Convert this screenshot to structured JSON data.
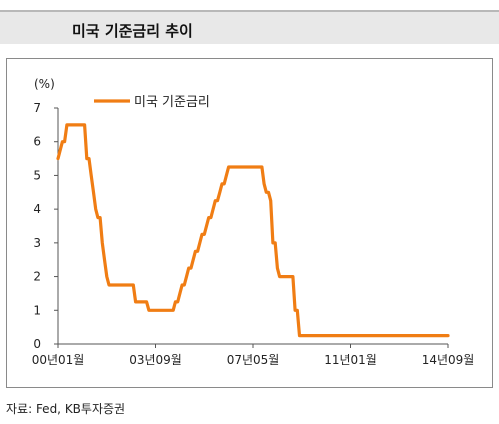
{
  "header": {
    "title": "미국 기준금리 추이"
  },
  "source": "자료: Fed, KB투자증권",
  "chart_data": {
    "type": "line",
    "title": "미국 기준금리 추이",
    "ylabel": "(%)",
    "xlabel": "",
    "ylim": [
      0,
      7
    ],
    "yticks": [
      0,
      1,
      2,
      3,
      4,
      5,
      6,
      7
    ],
    "xticks": [
      "00년01월",
      "03년09월",
      "07년05월",
      "11년01월",
      "14년09월"
    ],
    "xtick_positions": [
      0,
      44,
      88,
      132,
      176
    ],
    "legend_position": "top-left",
    "grid": false,
    "series_color": "#f07d14",
    "series": [
      {
        "name": "미국 기준금리",
        "points": [
          [
            0,
            5.5
          ],
          [
            1,
            5.75
          ],
          [
            2,
            6.0
          ],
          [
            3,
            6.0
          ],
          [
            4,
            6.5
          ],
          [
            5,
            6.5
          ],
          [
            6,
            6.5
          ],
          [
            7,
            6.5
          ],
          [
            8,
            6.5
          ],
          [
            9,
            6.5
          ],
          [
            10,
            6.5
          ],
          [
            11,
            6.5
          ],
          [
            12,
            6.5
          ],
          [
            13,
            5.5
          ],
          [
            14,
            5.5
          ],
          [
            15,
            5.0
          ],
          [
            16,
            4.5
          ],
          [
            17,
            4.0
          ],
          [
            18,
            3.75
          ],
          [
            19,
            3.75
          ],
          [
            20,
            3.0
          ],
          [
            21,
            2.5
          ],
          [
            22,
            2.0
          ],
          [
            23,
            1.75
          ],
          [
            24,
            1.75
          ],
          [
            25,
            1.75
          ],
          [
            26,
            1.75
          ],
          [
            27,
            1.75
          ],
          [
            28,
            1.75
          ],
          [
            29,
            1.75
          ],
          [
            30,
            1.75
          ],
          [
            31,
            1.75
          ],
          [
            32,
            1.75
          ],
          [
            33,
            1.75
          ],
          [
            34,
            1.75
          ],
          [
            35,
            1.25
          ],
          [
            36,
            1.25
          ],
          [
            37,
            1.25
          ],
          [
            38,
            1.25
          ],
          [
            39,
            1.25
          ],
          [
            40,
            1.25
          ],
          [
            41,
            1.0
          ],
          [
            42,
            1.0
          ],
          [
            43,
            1.0
          ],
          [
            44,
            1.0
          ],
          [
            45,
            1.0
          ],
          [
            46,
            1.0
          ],
          [
            47,
            1.0
          ],
          [
            48,
            1.0
          ],
          [
            49,
            1.0
          ],
          [
            50,
            1.0
          ],
          [
            51,
            1.0
          ],
          [
            52,
            1.0
          ],
          [
            53,
            1.25
          ],
          [
            54,
            1.25
          ],
          [
            55,
            1.5
          ],
          [
            56,
            1.75
          ],
          [
            57,
            1.75
          ],
          [
            58,
            2.0
          ],
          [
            59,
            2.25
          ],
          [
            60,
            2.25
          ],
          [
            61,
            2.5
          ],
          [
            62,
            2.75
          ],
          [
            63,
            2.75
          ],
          [
            64,
            3.0
          ],
          [
            65,
            3.25
          ],
          [
            66,
            3.25
          ],
          [
            67,
            3.5
          ],
          [
            68,
            3.75
          ],
          [
            69,
            3.75
          ],
          [
            70,
            4.0
          ],
          [
            71,
            4.25
          ],
          [
            72,
            4.25
          ],
          [
            73,
            4.5
          ],
          [
            74,
            4.75
          ],
          [
            75,
            4.75
          ],
          [
            76,
            5.0
          ],
          [
            77,
            5.25
          ],
          [
            78,
            5.25
          ],
          [
            79,
            5.25
          ],
          [
            80,
            5.25
          ],
          [
            81,
            5.25
          ],
          [
            82,
            5.25
          ],
          [
            83,
            5.25
          ],
          [
            84,
            5.25
          ],
          [
            85,
            5.25
          ],
          [
            86,
            5.25
          ],
          [
            87,
            5.25
          ],
          [
            88,
            5.25
          ],
          [
            89,
            5.25
          ],
          [
            90,
            5.25
          ],
          [
            91,
            5.25
          ],
          [
            92,
            5.25
          ],
          [
            93,
            4.75
          ],
          [
            94,
            4.5
          ],
          [
            95,
            4.5
          ],
          [
            96,
            4.25
          ],
          [
            97,
            3.0
          ],
          [
            98,
            3.0
          ],
          [
            99,
            2.25
          ],
          [
            100,
            2.0
          ],
          [
            101,
            2.0
          ],
          [
            102,
            2.0
          ],
          [
            103,
            2.0
          ],
          [
            104,
            2.0
          ],
          [
            105,
            2.0
          ],
          [
            106,
            2.0
          ],
          [
            107,
            1.0
          ],
          [
            108,
            1.0
          ],
          [
            109,
            0.25
          ],
          [
            110,
            0.25
          ],
          [
            176,
            0.25
          ]
        ]
      }
    ]
  }
}
